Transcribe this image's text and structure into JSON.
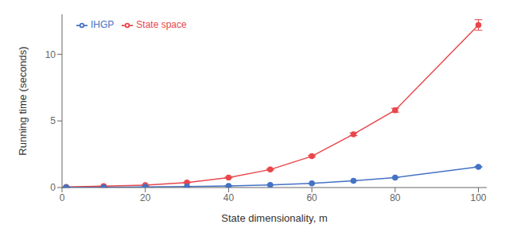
{
  "chart_data": {
    "type": "line",
    "xlabel": "State dimensionality, m",
    "ylabel": "Running time (seconds)",
    "x": [
      1,
      10,
      20,
      30,
      40,
      50,
      60,
      70,
      80,
      100
    ],
    "series": [
      {
        "name": "State space",
        "color": "#e8474c",
        "marker": "circle",
        "values": [
          0.05,
          0.1,
          0.18,
          0.38,
          0.75,
          1.35,
          2.35,
          4.0,
          5.8,
          12.2
        ],
        "errors": [
          0.003,
          0.005,
          0.01,
          0.015,
          0.025,
          0.04,
          0.06,
          0.1,
          0.15,
          0.4
        ]
      },
      {
        "name": "IHGP",
        "color": "#4472c4",
        "marker": "circle",
        "values": [
          0.01,
          0.02,
          0.04,
          0.07,
          0.12,
          0.2,
          0.32,
          0.5,
          0.75,
          1.55
        ],
        "errors": [
          0.001,
          0.001,
          0.002,
          0.003,
          0.004,
          0.005,
          0.006,
          0.008,
          0.01,
          0.02
        ]
      }
    ],
    "xlim": [
      0,
      102
    ],
    "ylim": [
      0,
      13
    ],
    "xticks": [
      0,
      20,
      40,
      60,
      80,
      100
    ],
    "yticks": [
      0,
      5,
      10
    ],
    "legend": "upper left",
    "grid": false
  }
}
